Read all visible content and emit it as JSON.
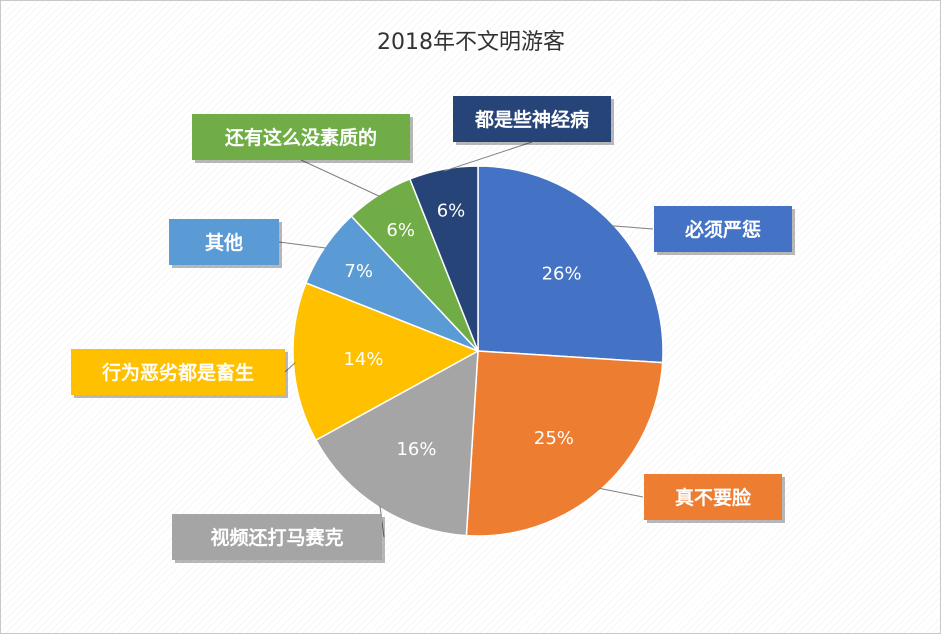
{
  "chart_data": {
    "type": "pie",
    "title": "2018年不文明游客",
    "slices": [
      {
        "label": "必须严惩",
        "value": 26,
        "pct_label": "26%",
        "color": "#4472C4"
      },
      {
        "label": "真不要脸",
        "value": 25,
        "pct_label": "25%",
        "color": "#ED7D31"
      },
      {
        "label": "视频还打马赛克",
        "value": 16,
        "pct_label": "16%",
        "color": "#A5A5A5"
      },
      {
        "label": "行为恶劣都是畜生",
        "value": 14,
        "pct_label": "14%",
        "color": "#FFC000"
      },
      {
        "label": "其他",
        "value": 7,
        "pct_label": "7%",
        "color": "#5B9BD5"
      },
      {
        "label": "还有这么没素质的",
        "value": 6,
        "pct_label": "6%",
        "color": "#70AD47"
      },
      {
        "label": "都是些神经病",
        "value": 6,
        "pct_label": "6%",
        "color": "#264478"
      }
    ]
  }
}
